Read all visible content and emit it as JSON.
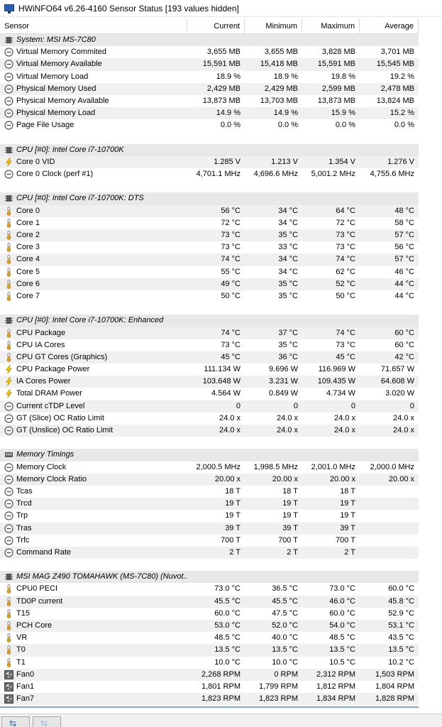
{
  "window": {
    "title": "HWiNFO64 v6.26-4160 Sensor Status [193 values hidden]"
  },
  "columns": {
    "sensor": "Sensor",
    "current": "Current",
    "minimum": "Minimum",
    "maximum": "Maximum",
    "average": "Average"
  },
  "rows": [
    {
      "kind": "group",
      "label": "System: MSI MS-7C80",
      "icon": "chip-icon"
    },
    {
      "kind": "data",
      "icon": "clock-icon",
      "label": "Virtual Memory Commited",
      "cur": "3,655 MB",
      "min": "3,655 MB",
      "max": "3,828 MB",
      "avg": "3,701 MB"
    },
    {
      "kind": "data",
      "icon": "clock-icon",
      "label": "Virtual Memory Available",
      "cur": "15,591 MB",
      "min": "15,418 MB",
      "max": "15,591 MB",
      "avg": "15,545 MB"
    },
    {
      "kind": "data",
      "icon": "clock-icon",
      "label": "Virtual Memory Load",
      "cur": "18.9 %",
      "min": "18.9 %",
      "max": "19.8 %",
      "avg": "19.2 %"
    },
    {
      "kind": "data",
      "icon": "clock-icon",
      "label": "Physical Memory Used",
      "cur": "2,429 MB",
      "min": "2,429 MB",
      "max": "2,599 MB",
      "avg": "2,478 MB"
    },
    {
      "kind": "data",
      "icon": "clock-icon",
      "label": "Physical Memory Available",
      "cur": "13,873 MB",
      "min": "13,703 MB",
      "max": "13,873 MB",
      "avg": "13,824 MB"
    },
    {
      "kind": "data",
      "icon": "clock-icon",
      "label": "Physical Memory Load",
      "cur": "14.9 %",
      "min": "14.9 %",
      "max": "15.9 %",
      "avg": "15.2 %"
    },
    {
      "kind": "data",
      "icon": "clock-icon",
      "label": "Page File Usage",
      "cur": "0.0 %",
      "min": "0.0 %",
      "max": "0.0 %",
      "avg": "0.0 %"
    },
    {
      "kind": "blank"
    },
    {
      "kind": "group",
      "label": "CPU [#0]: Intel Core i7-10700K",
      "icon": "chip-icon"
    },
    {
      "kind": "data",
      "icon": "bolt-icon",
      "label": "Core 0 VID",
      "cur": "1.285 V",
      "min": "1.213 V",
      "max": "1.354 V",
      "avg": "1.276 V"
    },
    {
      "kind": "data",
      "icon": "clock-icon",
      "label": "Core 0 Clock (perf #1)",
      "cur": "4,701.1 MHz",
      "min": "4,696.6 MHz",
      "max": "5,001.2 MHz",
      "avg": "4,755.6 MHz"
    },
    {
      "kind": "blank"
    },
    {
      "kind": "group",
      "label": "CPU [#0]: Intel Core i7-10700K: DTS",
      "icon": "chip-icon"
    },
    {
      "kind": "data",
      "icon": "thermometer-icon",
      "label": "Core 0",
      "cur": "56 °C",
      "min": "34 °C",
      "max": "64 °C",
      "avg": "48 °C"
    },
    {
      "kind": "data",
      "icon": "thermometer-icon",
      "label": "Core 1",
      "cur": "72 °C",
      "min": "34 °C",
      "max": "72 °C",
      "avg": "58 °C"
    },
    {
      "kind": "data",
      "icon": "thermometer-icon",
      "label": "Core 2",
      "cur": "73 °C",
      "min": "35 °C",
      "max": "73 °C",
      "avg": "57 °C"
    },
    {
      "kind": "data",
      "icon": "thermometer-icon",
      "label": "Core 3",
      "cur": "73 °C",
      "min": "33 °C",
      "max": "73 °C",
      "avg": "56 °C"
    },
    {
      "kind": "data",
      "icon": "thermometer-icon",
      "label": "Core 4",
      "cur": "74 °C",
      "min": "34 °C",
      "max": "74 °C",
      "avg": "57 °C"
    },
    {
      "kind": "data",
      "icon": "thermometer-icon",
      "label": "Core 5",
      "cur": "55 °C",
      "min": "34 °C",
      "max": "62 °C",
      "avg": "46 °C"
    },
    {
      "kind": "data",
      "icon": "thermometer-icon",
      "label": "Core 6",
      "cur": "49 °C",
      "min": "35 °C",
      "max": "52 °C",
      "avg": "44 °C"
    },
    {
      "kind": "data",
      "icon": "thermometer-icon",
      "label": "Core 7",
      "cur": "50 °C",
      "min": "35 °C",
      "max": "50 °C",
      "avg": "44 °C"
    },
    {
      "kind": "blank"
    },
    {
      "kind": "group",
      "label": "CPU [#0]: Intel Core i7-10700K: Enhanced",
      "icon": "chip-icon"
    },
    {
      "kind": "data",
      "icon": "thermometer-icon",
      "label": "CPU Package",
      "cur": "74 °C",
      "min": "37 °C",
      "max": "74 °C",
      "avg": "60 °C"
    },
    {
      "kind": "data",
      "icon": "thermometer-icon",
      "label": "CPU IA Cores",
      "cur": "73 °C",
      "min": "35 °C",
      "max": "73 °C",
      "avg": "60 °C"
    },
    {
      "kind": "data",
      "icon": "thermometer-icon",
      "label": "CPU GT Cores (Graphics)",
      "cur": "45 °C",
      "min": "36 °C",
      "max": "45 °C",
      "avg": "42 °C"
    },
    {
      "kind": "data",
      "icon": "bolt-icon",
      "label": "CPU Package Power",
      "cur": "111.134 W",
      "min": "9.696 W",
      "max": "116.969 W",
      "avg": "71.657 W"
    },
    {
      "kind": "data",
      "icon": "bolt-icon",
      "label": "IA Cores Power",
      "cur": "103.648 W",
      "min": "3.231 W",
      "max": "109.435 W",
      "avg": "64.608 W"
    },
    {
      "kind": "data",
      "icon": "bolt-icon",
      "label": "Total DRAM Power",
      "cur": "4.564 W",
      "min": "0.849 W",
      "max": "4.734 W",
      "avg": "3.020 W"
    },
    {
      "kind": "data",
      "icon": "clock-icon",
      "label": "Current cTDP Level",
      "cur": "0",
      "min": "0",
      "max": "0",
      "avg": "0"
    },
    {
      "kind": "data",
      "icon": "clock-icon",
      "label": "GT (Slice) OC Ratio Limit",
      "cur": "24.0 x",
      "min": "24.0 x",
      "max": "24.0 x",
      "avg": "24.0 x"
    },
    {
      "kind": "data",
      "icon": "clock-icon",
      "label": "GT (Unslice) OC Ratio Limit",
      "cur": "24.0 x",
      "min": "24.0 x",
      "max": "24.0 x",
      "avg": "24.0 x"
    },
    {
      "kind": "blank"
    },
    {
      "kind": "group",
      "label": "Memory Timings",
      "icon": "memory-icon"
    },
    {
      "kind": "data",
      "icon": "clock-icon",
      "label": "Memory Clock",
      "cur": "2,000.5 MHz",
      "min": "1,998.5 MHz",
      "max": "2,001.0 MHz",
      "avg": "2,000.0 MHz"
    },
    {
      "kind": "data",
      "icon": "clock-icon",
      "label": "Memory Clock Ratio",
      "cur": "20.00 x",
      "min": "20.00 x",
      "max": "20.00 x",
      "avg": "20.00 x"
    },
    {
      "kind": "data",
      "icon": "clock-icon",
      "label": "Tcas",
      "cur": "18 T",
      "min": "18 T",
      "max": "18 T",
      "avg": ""
    },
    {
      "kind": "data",
      "icon": "clock-icon",
      "label": "Trcd",
      "cur": "19 T",
      "min": "19 T",
      "max": "19 T",
      "avg": ""
    },
    {
      "kind": "data",
      "icon": "clock-icon",
      "label": "Trp",
      "cur": "19 T",
      "min": "19 T",
      "max": "19 T",
      "avg": ""
    },
    {
      "kind": "data",
      "icon": "clock-icon",
      "label": "Tras",
      "cur": "39 T",
      "min": "39 T",
      "max": "39 T",
      "avg": ""
    },
    {
      "kind": "data",
      "icon": "clock-icon",
      "label": "Trfc",
      "cur": "700 T",
      "min": "700 T",
      "max": "700 T",
      "avg": ""
    },
    {
      "kind": "data",
      "icon": "clock-icon",
      "label": "Command Rate",
      "cur": "2 T",
      "min": "2 T",
      "max": "2 T",
      "avg": ""
    },
    {
      "kind": "blank"
    },
    {
      "kind": "group",
      "label": "MSI MAG Z490 TOMAHAWK (MS-7C80) (Nuvot...",
      "icon": "chip-icon"
    },
    {
      "kind": "data",
      "icon": "thermometer-icon",
      "label": "CPU0 PECI",
      "cur": "73.0 °C",
      "min": "36.5 °C",
      "max": "73.0 °C",
      "avg": "60.0 °C"
    },
    {
      "kind": "data",
      "icon": "thermometer-icon",
      "label": "TD0P current",
      "cur": "45.5 °C",
      "min": "45.5 °C",
      "max": "46.0 °C",
      "avg": "45.8 °C"
    },
    {
      "kind": "data",
      "icon": "thermometer-icon",
      "label": "T15",
      "cur": "60.0 °C",
      "min": "47.5 °C",
      "max": "60.0 °C",
      "avg": "52.9 °C"
    },
    {
      "kind": "data",
      "icon": "thermometer-icon",
      "label": "PCH Core",
      "cur": "53.0 °C",
      "min": "52.0 °C",
      "max": "54.0 °C",
      "avg": "53.1 °C"
    },
    {
      "kind": "data",
      "icon": "thermometer-icon",
      "label": "VR",
      "cur": "48.5 °C",
      "min": "40.0 °C",
      "max": "48.5 °C",
      "avg": "43.5 °C"
    },
    {
      "kind": "data",
      "icon": "thermometer-icon",
      "label": "T0",
      "cur": "13.5 °C",
      "min": "13.5 °C",
      "max": "13.5 °C",
      "avg": "13.5 °C"
    },
    {
      "kind": "data",
      "icon": "thermometer-icon",
      "label": "T1",
      "cur": "10.0 °C",
      "min": "10.0 °C",
      "max": "10.5 °C",
      "avg": "10.2 °C"
    },
    {
      "kind": "data",
      "icon": "fan-icon",
      "label": "Fan0",
      "cur": "2,268 RPM",
      "min": "0 RPM",
      "max": "2,312 RPM",
      "avg": "1,503 RPM"
    },
    {
      "kind": "data",
      "icon": "fan-icon",
      "label": "Fan1",
      "cur": "1,801 RPM",
      "min": "1,799 RPM",
      "max": "1,812 RPM",
      "avg": "1,804 RPM"
    },
    {
      "kind": "data",
      "icon": "fan-icon",
      "label": "Fan7",
      "cur": "1,823 RPM",
      "min": "1,823 RPM",
      "max": "1,834 RPM",
      "avg": "1,828 RPM"
    }
  ],
  "footer": {
    "back_icon": "arrows-left-right-icon",
    "next_icon": "arrows-right-left-icon"
  }
}
